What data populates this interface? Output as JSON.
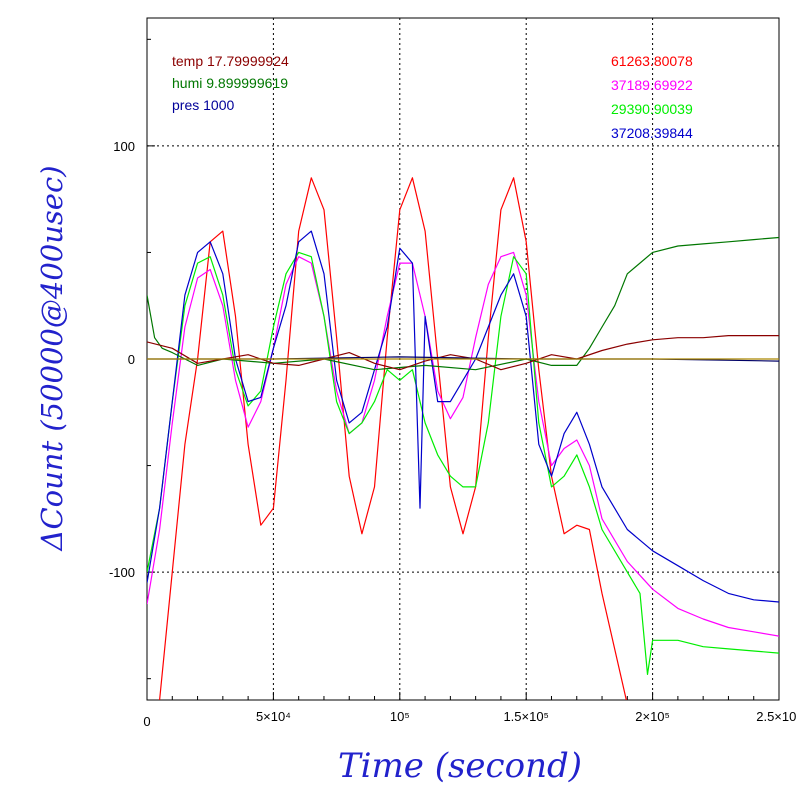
{
  "chart_data": {
    "type": "line",
    "xlabel": "Time (second)",
    "ylabel": "ΔCount (50000@400usec)",
    "xlim": [
      0,
      250000
    ],
    "ylim": [
      -160,
      160
    ],
    "grid": true,
    "x_ticks": [
      {
        "value": 0,
        "label": "0"
      },
      {
        "value": 50000,
        "label": "5×10⁴"
      },
      {
        "value": 100000,
        "label": "10⁵"
      },
      {
        "value": 150000,
        "label": "1.5×10⁵"
      },
      {
        "value": 200000,
        "label": "2×10⁵"
      },
      {
        "value": 250000,
        "label": "2.5×10⁵"
      }
    ],
    "y_ticks": [
      {
        "value": -100,
        "label": "-100"
      },
      {
        "value": 0,
        "label": "0"
      },
      {
        "value": 100,
        "label": "100"
      }
    ],
    "legend_left": [
      {
        "text": "temp 17.79999924",
        "color": "#8b0000"
      },
      {
        "text": "humi 9.899999619",
        "color": "#007700"
      },
      {
        "text": "pres 1000",
        "color": "#000099"
      }
    ],
    "legend_right": [
      {
        "text": "61263.80078",
        "color": "#ff0000"
      },
      {
        "text": "37189.69922",
        "color": "#ff00ff"
      },
      {
        "text": "29390.90039",
        "color": "#00ee00"
      },
      {
        "text": "37208.39844",
        "color": "#0000cc"
      }
    ],
    "series": [
      {
        "color": "#ff0000",
        "x": [
          5000,
          15000,
          20000,
          25000,
          30000,
          35000,
          40000,
          45000,
          50000,
          55000,
          60000,
          65000,
          70000,
          75000,
          80000,
          85000,
          90000,
          95000,
          100000,
          105000,
          110000,
          115000,
          120000,
          125000,
          130000,
          135000,
          140000,
          145000,
          150000,
          155000,
          160000,
          165000,
          170000,
          175000,
          180000,
          190000
        ],
        "y": [
          -160,
          -40,
          0,
          55,
          60,
          20,
          -40,
          -78,
          -70,
          -10,
          60,
          85,
          70,
          10,
          -55,
          -82,
          -60,
          10,
          70,
          85,
          60,
          0,
          -60,
          -82,
          -60,
          10,
          70,
          85,
          55,
          -5,
          -55,
          -82,
          -78,
          -80,
          -110,
          -162
        ]
      },
      {
        "color": "#ff00ff",
        "x": [
          0,
          5000,
          10000,
          15000,
          20000,
          25000,
          30000,
          35000,
          40000,
          45000,
          50000,
          55000,
          60000,
          65000,
          70000,
          75000,
          80000,
          85000,
          90000,
          95000,
          100000,
          105000,
          110000,
          115000,
          120000,
          125000,
          130000,
          135000,
          140000,
          145000,
          150000,
          155000,
          160000,
          165000,
          170000,
          175000,
          180000,
          190000,
          200000,
          210000,
          220000,
          230000,
          240000,
          250000
        ],
        "y": [
          -115,
          -80,
          -30,
          15,
          38,
          42,
          25,
          -10,
          -32,
          -20,
          5,
          35,
          48,
          45,
          20,
          -15,
          -35,
          -30,
          -10,
          20,
          45,
          45,
          20,
          -15,
          -28,
          -18,
          10,
          35,
          48,
          50,
          30,
          -20,
          -50,
          -42,
          -38,
          -50,
          -75,
          -95,
          -108,
          -117,
          -122,
          -126,
          -128,
          -130
        ]
      },
      {
        "color": "#00ee00",
        "x": [
          0,
          5000,
          10000,
          15000,
          20000,
          25000,
          30000,
          35000,
          40000,
          45000,
          50000,
          55000,
          60000,
          65000,
          70000,
          75000,
          80000,
          85000,
          90000,
          95000,
          100000,
          105000,
          110000,
          115000,
          120000,
          125000,
          130000,
          135000,
          140000,
          145000,
          150000,
          155000,
          160000,
          165000,
          170000,
          175000,
          180000,
          190000,
          195000,
          198000,
          200000,
          210000,
          220000,
          230000,
          240000,
          250000
        ],
        "y": [
          -100,
          -70,
          -20,
          25,
          45,
          48,
          30,
          -5,
          -22,
          -15,
          15,
          40,
          50,
          48,
          20,
          -20,
          -35,
          -30,
          -20,
          -5,
          -10,
          -5,
          -30,
          -45,
          -55,
          -60,
          -60,
          -30,
          20,
          48,
          40,
          -30,
          -60,
          -55,
          -45,
          -60,
          -80,
          -100,
          -110,
          -148,
          -132,
          -132,
          -135,
          -136,
          -137,
          -138
        ]
      },
      {
        "color": "#0000cc",
        "x": [
          0,
          5000,
          10000,
          15000,
          20000,
          25000,
          30000,
          35000,
          40000,
          45000,
          50000,
          55000,
          60000,
          65000,
          70000,
          75000,
          80000,
          85000,
          90000,
          95000,
          100000,
          105000,
          108000,
          110000,
          115000,
          120000,
          125000,
          130000,
          135000,
          140000,
          145000,
          150000,
          155000,
          160000,
          165000,
          170000,
          175000,
          180000,
          190000,
          200000,
          210000,
          220000,
          230000,
          240000,
          250000
        ],
        "y": [
          -105,
          -70,
          -20,
          30,
          50,
          55,
          40,
          0,
          -20,
          -18,
          5,
          25,
          55,
          60,
          40,
          -10,
          -30,
          -25,
          -5,
          15,
          52,
          45,
          -70,
          20,
          -20,
          -20,
          -10,
          0,
          15,
          30,
          40,
          20,
          -40,
          -55,
          -35,
          -25,
          -40,
          -60,
          -80,
          -90,
          -97,
          -104,
          -110,
          -113,
          -114
        ]
      },
      {
        "color": "#007700",
        "x": [
          0,
          3000,
          6000,
          10000,
          20000,
          30000,
          50000,
          70000,
          90000,
          110000,
          130000,
          150000,
          160000,
          170000,
          175000,
          180000,
          185000,
          190000,
          200000,
          210000,
          220000,
          230000,
          240000,
          250000
        ],
        "y": [
          30,
          10,
          5,
          3,
          -3,
          0,
          -2,
          0,
          -5,
          -3,
          -5,
          0,
          -3,
          -3,
          5,
          15,
          25,
          40,
          50,
          53,
          54,
          55,
          56,
          57
        ]
      },
      {
        "color": "#8b0000",
        "x": [
          0,
          10000,
          20000,
          30000,
          40000,
          50000,
          60000,
          70000,
          80000,
          90000,
          100000,
          110000,
          120000,
          130000,
          140000,
          150000,
          160000,
          170000,
          180000,
          190000,
          200000,
          210000,
          220000,
          230000,
          240000,
          250000
        ],
        "y": [
          8,
          5,
          -2,
          0,
          2,
          -2,
          -3,
          0,
          3,
          -2,
          -5,
          -1,
          2,
          0,
          -5,
          -2,
          2,
          0,
          4,
          7,
          9,
          10,
          10,
          11,
          11,
          11
        ]
      },
      {
        "color": "#000066",
        "x": [
          0,
          50000,
          100000,
          150000,
          200000,
          250000
        ],
        "y": [
          0,
          0,
          1,
          0,
          0,
          -1
        ]
      },
      {
        "color": "#aa8800",
        "x": [
          0,
          250000
        ],
        "y": [
          0,
          0
        ]
      }
    ]
  }
}
